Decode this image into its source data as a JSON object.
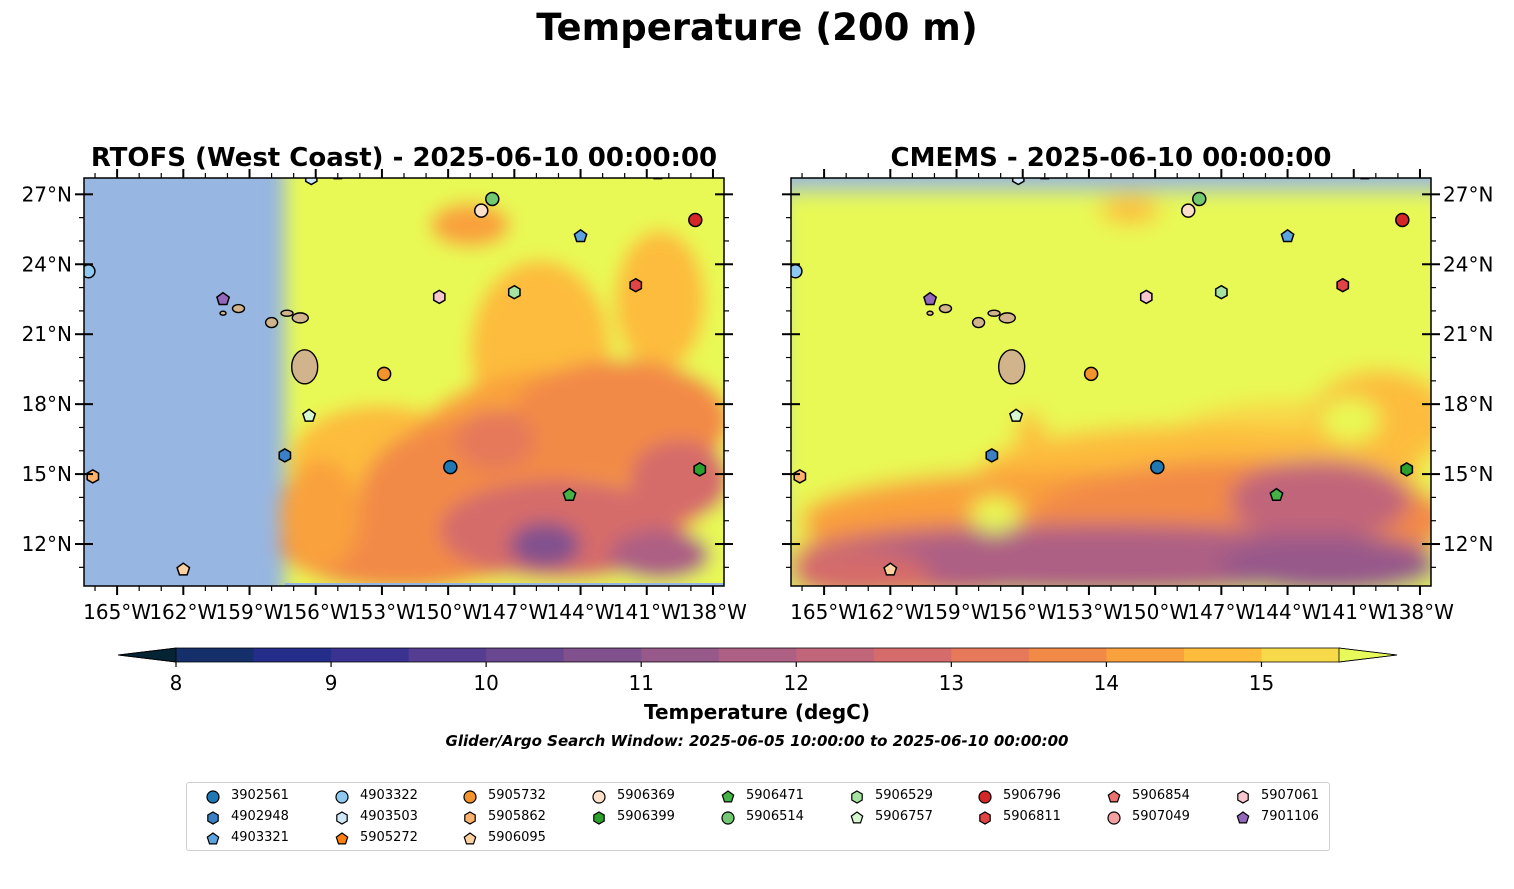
{
  "figure": {
    "title": "Temperature (200 m)",
    "search_window": "Glider/Argo Search Window: 2025-06-05 10:00:00 to 2025-06-10 00:00:00"
  },
  "chart_data": [
    {
      "type": "heatmap",
      "title": "RTOFS (West Coast) - 2025-06-10 00:00:00",
      "xlim": [
        -166.5,
        -137.5
      ],
      "ylim": [
        10.2,
        27.7
      ],
      "xticks": [
        "165°W",
        "162°W",
        "159°W",
        "156°W",
        "153°W",
        "150°W",
        "147°W",
        "144°W",
        "141°W",
        "138°W"
      ],
      "yticks": [
        "27°N",
        "24°N",
        "21°N",
        "18°N",
        "15°N",
        "12°N"
      ],
      "model_coverage_west_lon": -157.4,
      "grid": false
    },
    {
      "type": "heatmap",
      "title": "CMEMS - 2025-06-10 00:00:00",
      "xlim": [
        -166.5,
        -137.5
      ],
      "ylim": [
        10.2,
        27.7
      ],
      "xticks": [
        "165°W",
        "162°W",
        "159°W",
        "156°W",
        "153°W",
        "150°W",
        "147°W",
        "144°W",
        "141°W",
        "138°W"
      ],
      "yticks": [
        "27°N",
        "24°N",
        "21°N",
        "18°N",
        "15°N",
        "12°N"
      ],
      "model_coverage_north_lat": 27.2,
      "grid": false
    }
  ],
  "colorbar": {
    "label": "Temperature (degC)",
    "min": 8,
    "max": 15.5,
    "step": 0.5,
    "extend": "both",
    "ticks": [
      "8",
      "9",
      "10",
      "11",
      "12",
      "13",
      "14",
      "15"
    ],
    "colors": [
      "#0c2b3f",
      "#142f6a",
      "#252d8a",
      "#3a3290",
      "#553d92",
      "#6a4891",
      "#81518e",
      "#97588a",
      "#ad5f84",
      "#c1657a",
      "#d56c6b",
      "#e5795a",
      "#f28a47",
      "#f9a13c",
      "#fdbc3c",
      "#f8d949",
      "#e8f955"
    ],
    "under_color": "#042333",
    "over_color": "#e8fa5b"
  },
  "colors": {
    "land": "#d2b48c",
    "masked_ocean": "#97b6e1"
  },
  "profiles": [
    {
      "id": "3902561",
      "lon": -149.9,
      "lat": 15.3,
      "marker": "circle",
      "color": "#1f77b4"
    },
    {
      "id": "4902948",
      "lon": -157.4,
      "lat": 15.8,
      "marker": "hexagon",
      "color": "#3b7fc4"
    },
    {
      "id": "4903321",
      "lon": -144.0,
      "lat": 25.2,
      "marker": "pentagon",
      "color": "#5aa5df"
    },
    {
      "id": "4903322",
      "lon": -166.3,
      "lat": 23.7,
      "marker": "circle",
      "color": "#8ec9f2"
    },
    {
      "id": "4903503",
      "lon": -156.2,
      "lat": 27.7,
      "marker": "hexagon",
      "color": "#d0e7f7"
    },
    {
      "id": "5905272",
      "lon": -155.0,
      "lat": 27.9,
      "marker": "pentagon",
      "color": "#ff7f0e"
    },
    {
      "id": "5905732",
      "lon": -152.9,
      "lat": 19.3,
      "marker": "circle",
      "color": "#f2932c"
    },
    {
      "id": "5905862",
      "lon": -166.1,
      "lat": 14.9,
      "marker": "hexagon",
      "color": "#fdb16a"
    },
    {
      "id": "5906095",
      "lon": -162.0,
      "lat": 10.9,
      "marker": "pentagon",
      "color": "#fed2a0"
    },
    {
      "id": "5906369",
      "lon": -148.5,
      "lat": 26.3,
      "marker": "circle",
      "color": "#fde0c9"
    },
    {
      "id": "5906399",
      "lon": -138.6,
      "lat": 15.2,
      "marker": "hexagon",
      "color": "#2ca02c"
    },
    {
      "id": "5906471",
      "lon": -144.5,
      "lat": 14.1,
      "marker": "pentagon",
      "color": "#44b244"
    },
    {
      "id": "5906514",
      "lon": -148.0,
      "lat": 26.8,
      "marker": "circle",
      "color": "#72c972"
    },
    {
      "id": "5906529",
      "lon": -147.0,
      "lat": 22.8,
      "marker": "hexagon",
      "color": "#a6e3a0"
    },
    {
      "id": "5906757",
      "lon": -156.3,
      "lat": 17.5,
      "marker": "pentagon",
      "color": "#d6f7cf"
    },
    {
      "id": "5906796",
      "lon": -138.8,
      "lat": 25.9,
      "marker": "circle",
      "color": "#d62728"
    },
    {
      "id": "5906811",
      "lon": -141.5,
      "lat": 23.1,
      "marker": "hexagon",
      "color": "#e04444"
    },
    {
      "id": "5906854",
      "lon": -140.5,
      "lat": 27.9,
      "marker": "pentagon",
      "color": "#ec7070"
    },
    {
      "id": "5907049",
      "lon": -139.5,
      "lat": 28.0,
      "marker": "circle",
      "color": "#f4a0a0"
    },
    {
      "id": "5907061",
      "lon": -150.4,
      "lat": 22.6,
      "marker": "hexagon",
      "color": "#f8c6cf"
    },
    {
      "id": "7901106",
      "lon": -160.2,
      "lat": 22.5,
      "marker": "pentagon",
      "color": "#9467bd"
    }
  ]
}
